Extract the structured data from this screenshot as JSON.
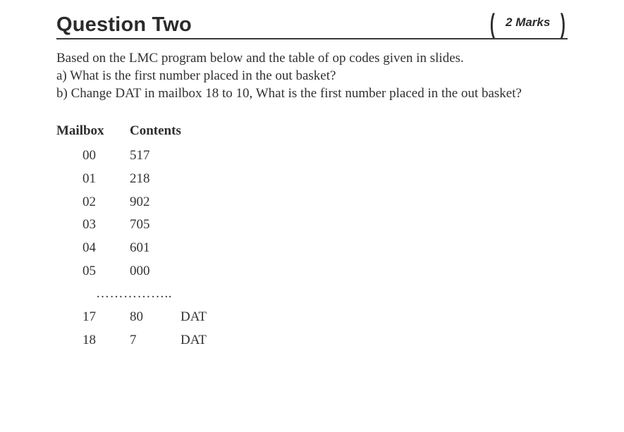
{
  "header": {
    "title": "Question Two",
    "marks": "2 Marks"
  },
  "body": {
    "intro": "Based on the LMC program below and the table of op codes given in slides.",
    "part_a": "a) What is the first number placed in the out basket?",
    "part_b": "b) Change DAT in mailbox 18 to 10, What is the first number placed in the out basket?"
  },
  "table": {
    "head_mailbox": "Mailbox",
    "head_contents": "Contents",
    "rows": [
      {
        "mb": "00",
        "ct": "517",
        "lbl": ""
      },
      {
        "mb": "01",
        "ct": "218",
        "lbl": ""
      },
      {
        "mb": "02",
        "ct": "902",
        "lbl": ""
      },
      {
        "mb": "03",
        "ct": "705",
        "lbl": ""
      },
      {
        "mb": "04",
        "ct": "601",
        "lbl": ""
      },
      {
        "mb": "05",
        "ct": "000",
        "lbl": ""
      }
    ],
    "separator": "……………..",
    "rows2": [
      {
        "mb": "17",
        "ct": "80",
        "lbl": "DAT"
      },
      {
        "mb": "18",
        "ct": "7",
        "lbl": "DAT"
      }
    ]
  }
}
